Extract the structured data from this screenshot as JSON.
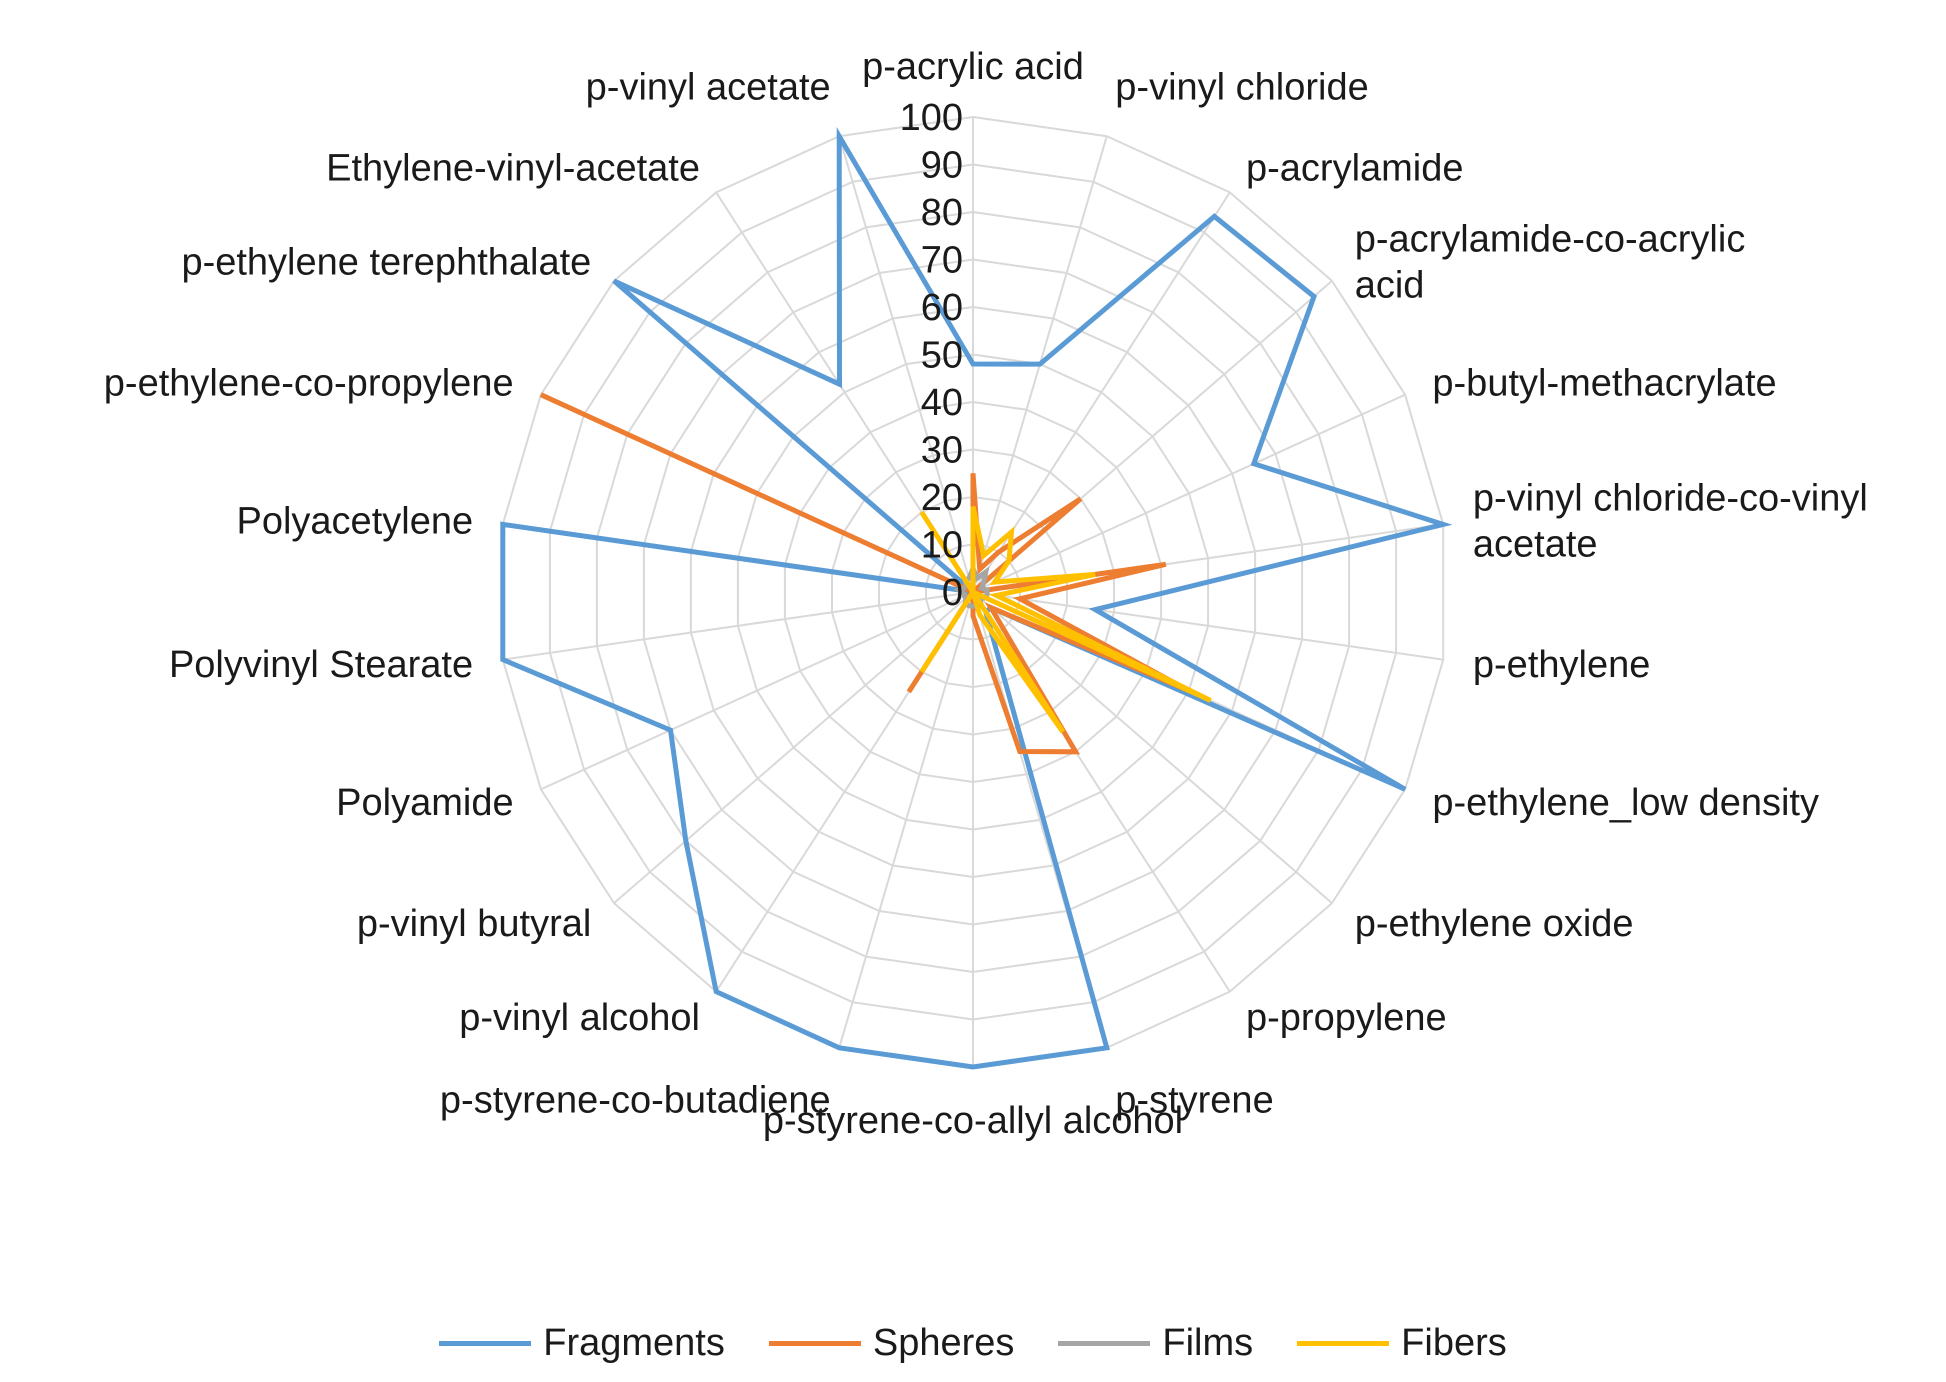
{
  "chart_data": {
    "type": "radar",
    "title": "",
    "rlim": [
      0,
      100
    ],
    "r_ticks": [
      "0",
      "10",
      "20",
      "30",
      "40",
      "50",
      "60",
      "70",
      "80",
      "90",
      "100"
    ],
    "grid": true,
    "legend_position": "bottom",
    "categories": [
      "p-acrylic acid",
      "p-vinyl chloride",
      "p-acrylamide",
      "p-acrylamide-co-acrylic acid",
      "p-butyl-methacrylate",
      "p-vinyl chloride-co-vinyl acetate",
      "p-ethylene",
      "p-ethylene_low density",
      "p-ethylene oxide",
      "p-propylene",
      "p-styrene",
      "p-styrene-co-allyl alcohol",
      "p-styrene-co-butadiene",
      "p-vinyl alcohol",
      "p-vinyl butyral",
      "Polyamide",
      "Polyvinyl Stearate",
      "Polyacetylene",
      "p-ethylene-co-propylene",
      "p-ethylene terephthalate",
      "Ethylene-vinyl-acetate",
      "p-vinyl acetate"
    ],
    "series": [
      {
        "name": "Fragments",
        "color": "#5B9BD5",
        "values": [
          48,
          50,
          94,
          95,
          65,
          100,
          26,
          100,
          5,
          5,
          100,
          100,
          100,
          100,
          80,
          70,
          100,
          100,
          0,
          100,
          52,
          100
        ]
      },
      {
        "name": "Spheres",
        "color": "#ED7D31",
        "values": [
          25,
          5,
          10,
          30,
          0,
          41,
          10,
          50,
          5,
          40,
          35,
          5,
          0,
          25,
          0,
          0,
          0,
          0,
          100,
          0,
          0,
          0
        ]
      },
      {
        "name": "Films",
        "color": "#A5A5A5",
        "values": [
          5,
          3,
          5,
          3,
          2,
          3,
          3,
          3,
          2,
          3,
          3,
          3,
          3,
          3,
          2,
          2,
          2,
          3,
          2,
          2,
          3,
          3
        ]
      },
      {
        "name": "Fibers",
        "color": "#FFC000",
        "values": [
          18,
          8,
          15,
          10,
          5,
          26,
          5,
          55,
          0,
          35,
          5,
          0,
          0,
          20,
          0,
          0,
          0,
          0,
          0,
          0,
          20,
          0
        ]
      }
    ]
  }
}
